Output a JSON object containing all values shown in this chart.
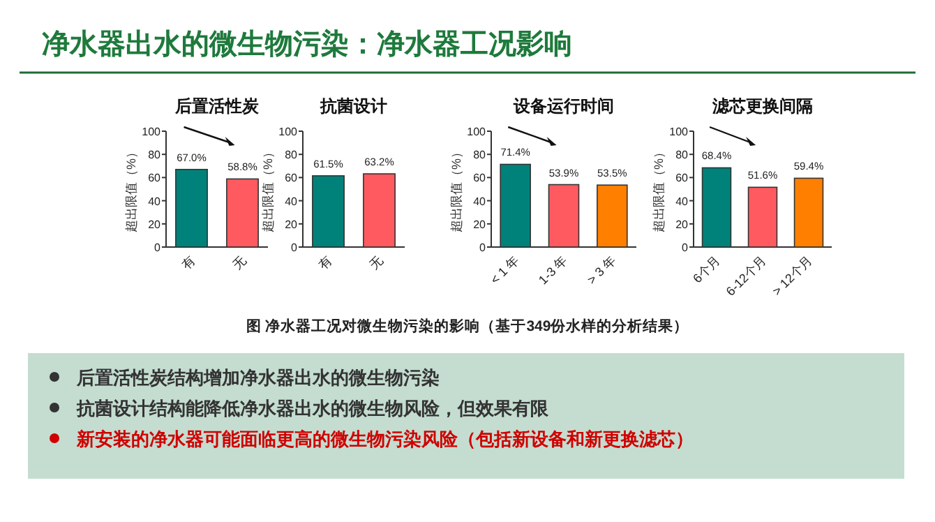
{
  "chart_data": [
    {
      "type": "bar",
      "title": "后置活性炭",
      "ylabel": "超出限值（%）",
      "categories": [
        "有",
        "无"
      ],
      "values": [
        67.0,
        58.8
      ],
      "colors": [
        "#00827a",
        "#ff5a5f"
      ],
      "value_labels": [
        "67.0%",
        "58.8%"
      ],
      "ylim": [
        0,
        100
      ],
      "yticks": [
        0,
        20,
        40,
        60,
        80,
        100
      ],
      "grid": false
    },
    {
      "type": "bar",
      "title": "抗菌设计",
      "ylabel": "超出限值（%）",
      "categories": [
        "有",
        "无"
      ],
      "values": [
        61.5,
        63.2
      ],
      "colors": [
        "#00827a",
        "#ff5a5f"
      ],
      "value_labels": [
        "61.5%",
        "63.2%"
      ],
      "ylim": [
        0,
        100
      ],
      "yticks": [
        0,
        20,
        40,
        60,
        80,
        100
      ],
      "grid": false
    },
    {
      "type": "bar",
      "title": "设备运行时间",
      "ylabel": "超出限值（%）",
      "categories": [
        "< 1 年",
        "1-3 年",
        "> 3 年"
      ],
      "values": [
        71.4,
        53.9,
        53.5
      ],
      "colors": [
        "#00827a",
        "#ff5a5f",
        "#ff7f00"
      ],
      "value_labels": [
        "71.4%",
        "53.9%",
        "53.5%"
      ],
      "ylim": [
        0,
        100
      ],
      "yticks": [
        0,
        20,
        40,
        60,
        80,
        100
      ],
      "grid": false
    },
    {
      "type": "bar",
      "title": "滤芯更换间隔",
      "ylabel": "超出限值（%）",
      "categories": [
        "6个月",
        "6-12个月",
        "> 12个月"
      ],
      "values": [
        68.4,
        51.6,
        59.4
      ],
      "colors": [
        "#00827a",
        "#ff5a5f",
        "#ff7f00"
      ],
      "value_labels": [
        "68.4%",
        "51.6%",
        "59.4%"
      ],
      "ylim": [
        0,
        100
      ],
      "yticks": [
        0,
        20,
        40,
        60,
        80,
        100
      ],
      "grid": false
    },
    {
      "type": "other",
      "title": "净水器出水的微生物污染：净水器工况影响",
      "annotations": [
        "图 净水器工况对微生物污染的影响（基于349份水样的分析结果）",
        "后置活性炭结构增加净水器出水的微生物污染",
        "抗菌设计结构能降低净水器出水的微生物风险，但效果有限",
        "新安装的净水器可能面临更高的微生物污染风险（包括新设备和新更换滤芯）"
      ]
    }
  ]
}
